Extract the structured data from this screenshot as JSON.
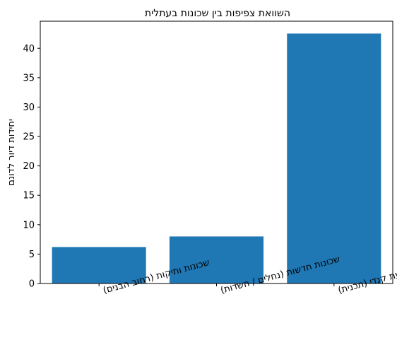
{
  "chart_data": {
    "type": "bar",
    "title": "השוואת צפיפות בין שכונות בעתלית",
    "xlabel": "",
    "ylabel": "יחידות דיור לדונם",
    "categories": [
      "שכונות ותיקות (רחוב הבנים)",
      "שכונות חדשות (נחלים / השדות)",
      "גבעת קנדי (תכנית)"
    ],
    "values": [
      6.2,
      8.0,
      42.5
    ],
    "ylim": [
      0,
      44.6
    ],
    "yticks": [
      0,
      5,
      10,
      15,
      20,
      25,
      30,
      35,
      40
    ],
    "bar_color": "#1f77b4",
    "grid": false,
    "legend": "none"
  }
}
